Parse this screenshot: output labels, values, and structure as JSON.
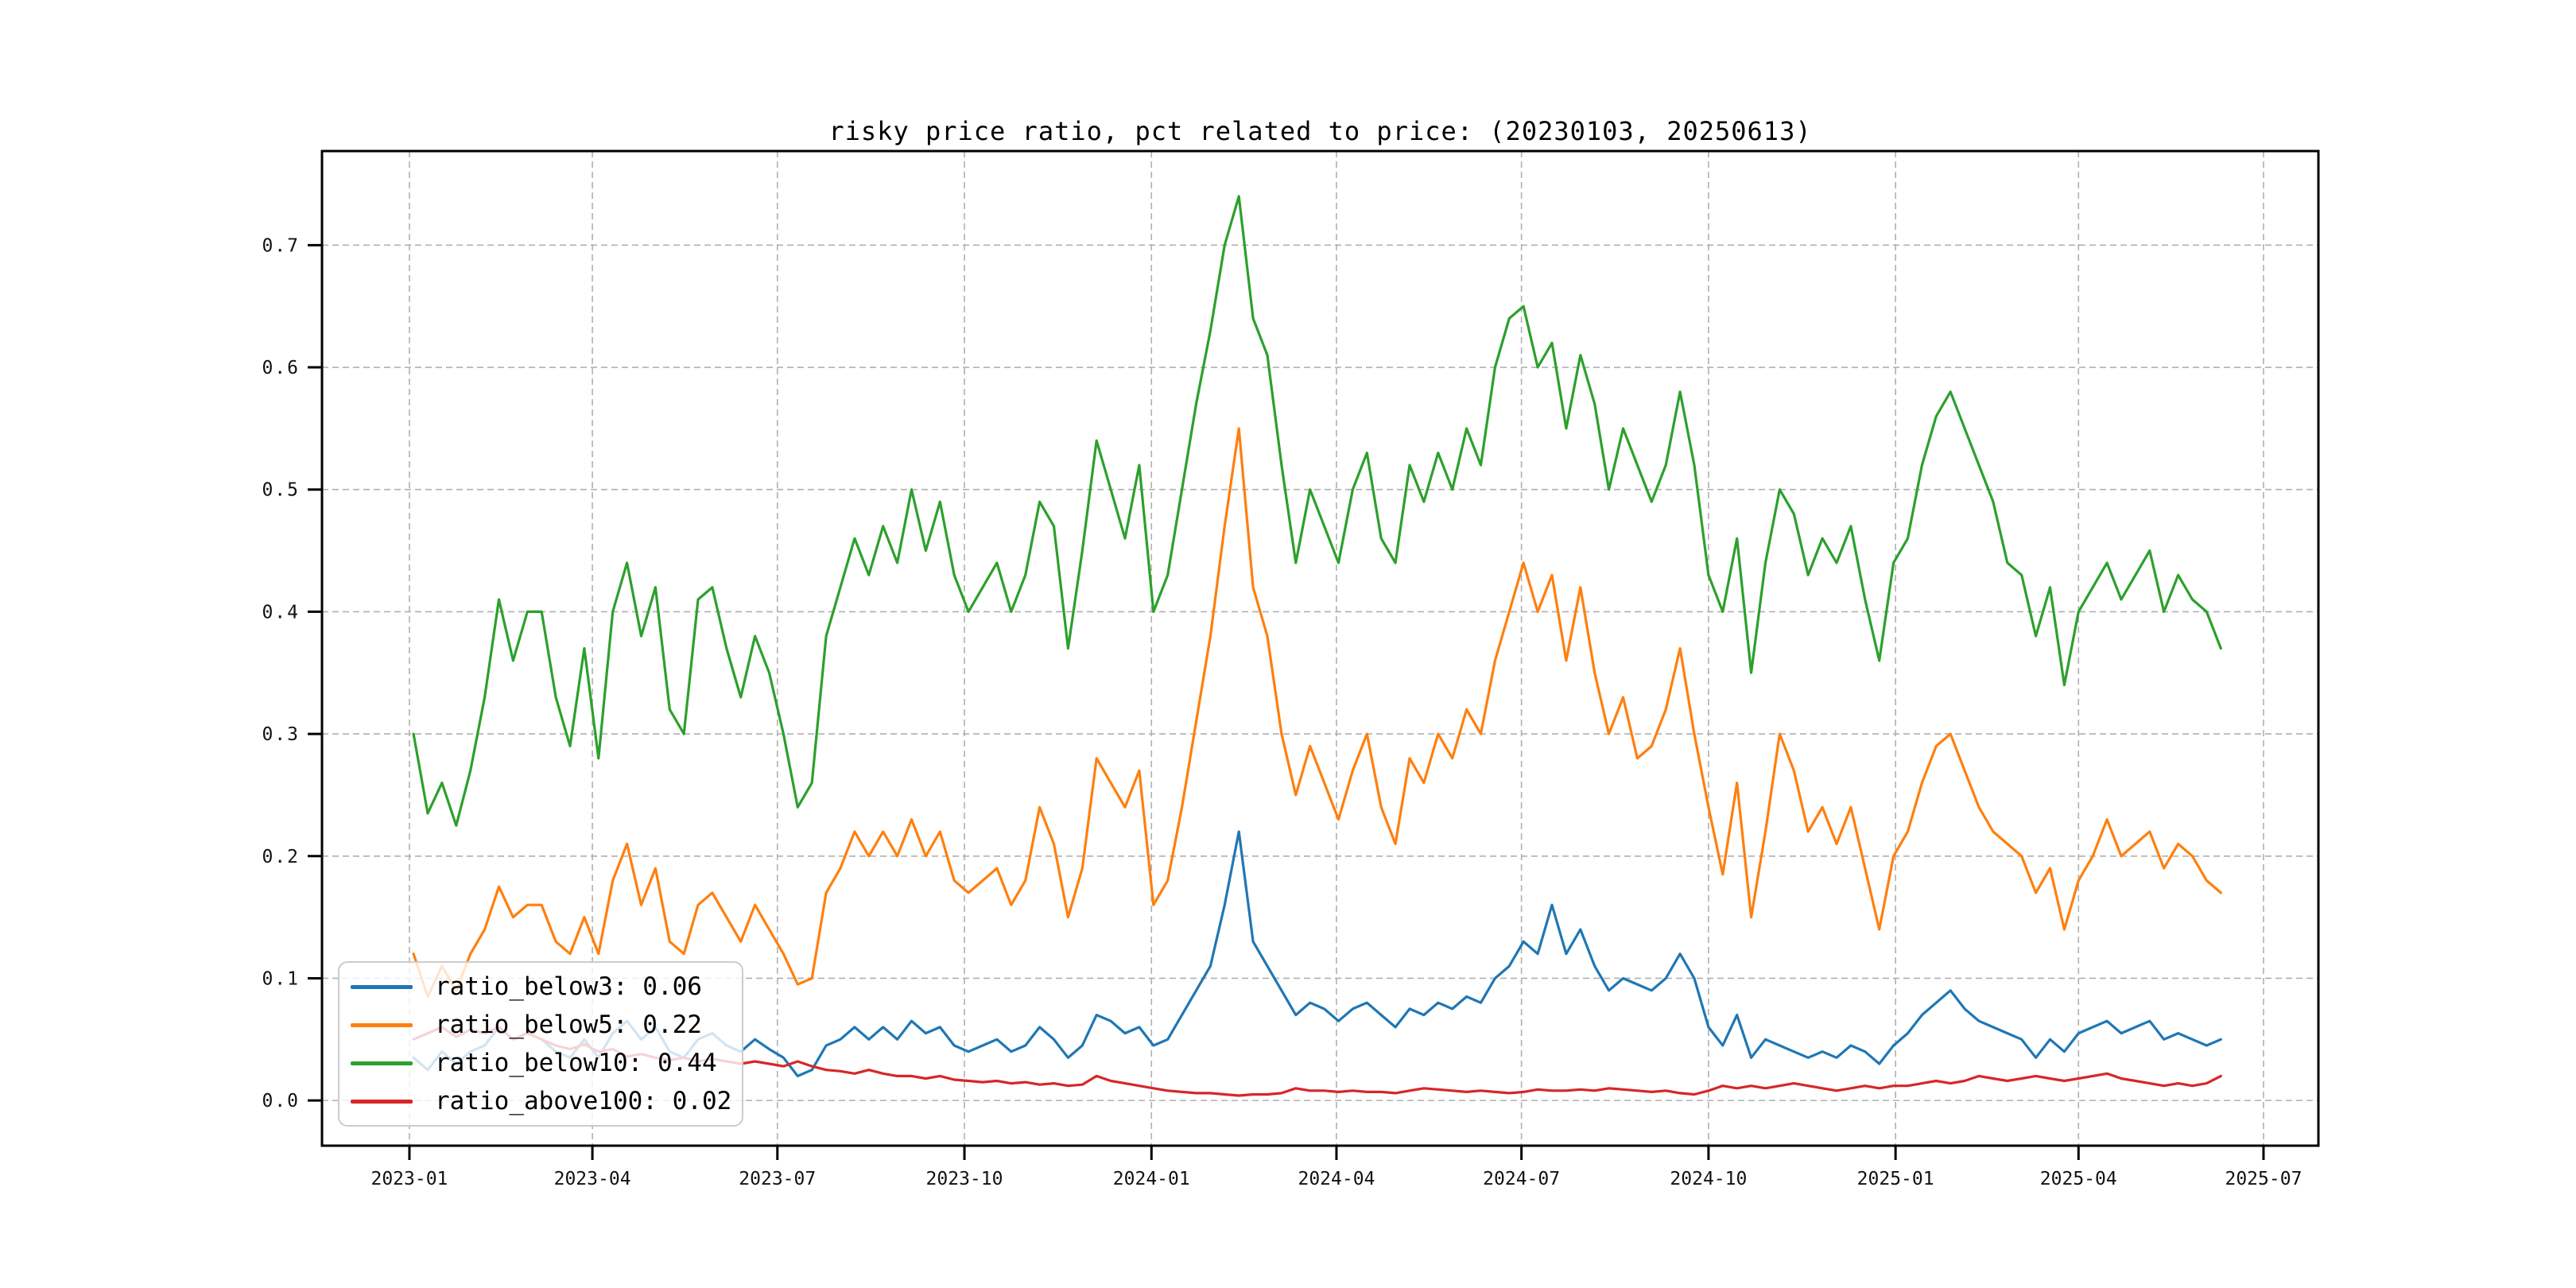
{
  "chart_data": {
    "type": "line",
    "title": "risky price ratio, pct related to price: (20230103, 20250613)",
    "xlabel": "",
    "ylabel": "",
    "grid": true,
    "legend_position": "lower left",
    "ylim": [
      -0.037,
      0.777
    ],
    "y_ticks": [
      0.0,
      0.1,
      0.2,
      0.3,
      0.4,
      0.5,
      0.6,
      0.7
    ],
    "y_tick_labels": [
      "0.0",
      "0.1",
      "0.2",
      "0.3",
      "0.4",
      "0.5",
      "0.6",
      "0.7"
    ],
    "xlim_dates": [
      "2022-11-19",
      "2025-07-28"
    ],
    "x_ticks": [
      {
        "label": "2023-01",
        "date": "2023-01-01"
      },
      {
        "label": "2023-04",
        "date": "2023-04-01"
      },
      {
        "label": "2023-07",
        "date": "2023-07-01"
      },
      {
        "label": "2023-10",
        "date": "2023-10-01"
      },
      {
        "label": "2024-01",
        "date": "2024-01-01"
      },
      {
        "label": "2024-04",
        "date": "2024-04-01"
      },
      {
        "label": "2024-07",
        "date": "2024-07-01"
      },
      {
        "label": "2024-10",
        "date": "2024-10-01"
      },
      {
        "label": "2025-01",
        "date": "2025-01-01"
      },
      {
        "label": "2025-04",
        "date": "2025-04-01"
      },
      {
        "label": "2025-07",
        "date": "2025-07-01"
      }
    ],
    "x_start_date": "2023-01-03",
    "x_interval_days": 7,
    "colors": {
      "grid": "#b0b0b0",
      "spine": "#000000",
      "tick_text": "#111111",
      "legend_border": "#cccccc"
    },
    "series": [
      {
        "name": "ratio_below3",
        "legend_label": "ratio_below3: 0.06",
        "color": "#1f77b4",
        "values": [
          0.035,
          0.025,
          0.04,
          0.03,
          0.04,
          0.045,
          0.06,
          0.05,
          0.055,
          0.05,
          0.04,
          0.035,
          0.05,
          0.035,
          0.055,
          0.065,
          0.05,
          0.06,
          0.04,
          0.035,
          0.05,
          0.055,
          0.045,
          0.04,
          0.05,
          0.042,
          0.035,
          0.02,
          0.025,
          0.045,
          0.05,
          0.06,
          0.05,
          0.06,
          0.05,
          0.065,
          0.055,
          0.06,
          0.045,
          0.04,
          0.045,
          0.05,
          0.04,
          0.045,
          0.06,
          0.05,
          0.035,
          0.045,
          0.07,
          0.065,
          0.055,
          0.06,
          0.045,
          0.05,
          0.07,
          0.09,
          0.11,
          0.16,
          0.22,
          0.13,
          0.11,
          0.09,
          0.07,
          0.08,
          0.075,
          0.065,
          0.075,
          0.08,
          0.07,
          0.06,
          0.075,
          0.07,
          0.08,
          0.075,
          0.085,
          0.08,
          0.1,
          0.11,
          0.13,
          0.12,
          0.16,
          0.12,
          0.14,
          0.11,
          0.09,
          0.1,
          0.095,
          0.09,
          0.1,
          0.12,
          0.1,
          0.06,
          0.045,
          0.07,
          0.035,
          0.05,
          0.045,
          0.04,
          0.035,
          0.04,
          0.035,
          0.045,
          0.04,
          0.03,
          0.045,
          0.055,
          0.07,
          0.08,
          0.09,
          0.075,
          0.065,
          0.06,
          0.055,
          0.05,
          0.035,
          0.05,
          0.04,
          0.055,
          0.06,
          0.065,
          0.055,
          0.06,
          0.065,
          0.05,
          0.055,
          0.05,
          0.045,
          0.05
        ]
      },
      {
        "name": "ratio_below5",
        "legend_label": "ratio_below5: 0.22",
        "color": "#ff7f0e",
        "values": [
          0.12,
          0.085,
          0.11,
          0.09,
          0.12,
          0.14,
          0.175,
          0.15,
          0.16,
          0.16,
          0.13,
          0.12,
          0.15,
          0.12,
          0.18,
          0.21,
          0.16,
          0.19,
          0.13,
          0.12,
          0.16,
          0.17,
          0.15,
          0.13,
          0.16,
          0.14,
          0.12,
          0.095,
          0.1,
          0.17,
          0.19,
          0.22,
          0.2,
          0.22,
          0.2,
          0.23,
          0.2,
          0.22,
          0.18,
          0.17,
          0.18,
          0.19,
          0.16,
          0.18,
          0.24,
          0.21,
          0.15,
          0.19,
          0.28,
          0.26,
          0.24,
          0.27,
          0.16,
          0.18,
          0.24,
          0.31,
          0.38,
          0.47,
          0.55,
          0.42,
          0.38,
          0.3,
          0.25,
          0.29,
          0.26,
          0.23,
          0.27,
          0.3,
          0.24,
          0.21,
          0.28,
          0.26,
          0.3,
          0.28,
          0.32,
          0.3,
          0.36,
          0.4,
          0.44,
          0.4,
          0.43,
          0.36,
          0.42,
          0.35,
          0.3,
          0.33,
          0.28,
          0.29,
          0.32,
          0.37,
          0.3,
          0.24,
          0.185,
          0.26,
          0.15,
          0.22,
          0.3,
          0.27,
          0.22,
          0.24,
          0.21,
          0.24,
          0.19,
          0.14,
          0.2,
          0.22,
          0.26,
          0.29,
          0.3,
          0.27,
          0.24,
          0.22,
          0.21,
          0.2,
          0.17,
          0.19,
          0.14,
          0.18,
          0.2,
          0.23,
          0.2,
          0.21,
          0.22,
          0.19,
          0.21,
          0.2,
          0.18,
          0.17
        ]
      },
      {
        "name": "ratio_below10",
        "legend_label": "ratio_below10: 0.44",
        "color": "#2ca02c",
        "values": [
          0.3,
          0.235,
          0.26,
          0.225,
          0.27,
          0.33,
          0.41,
          0.36,
          0.4,
          0.4,
          0.33,
          0.29,
          0.37,
          0.28,
          0.4,
          0.44,
          0.38,
          0.42,
          0.32,
          0.3,
          0.41,
          0.42,
          0.37,
          0.33,
          0.38,
          0.35,
          0.3,
          0.24,
          0.26,
          0.38,
          0.42,
          0.46,
          0.43,
          0.47,
          0.44,
          0.5,
          0.45,
          0.49,
          0.43,
          0.4,
          0.42,
          0.44,
          0.4,
          0.43,
          0.49,
          0.47,
          0.37,
          0.45,
          0.54,
          0.5,
          0.46,
          0.52,
          0.4,
          0.43,
          0.5,
          0.57,
          0.63,
          0.7,
          0.74,
          0.64,
          0.61,
          0.52,
          0.44,
          0.5,
          0.47,
          0.44,
          0.5,
          0.53,
          0.46,
          0.44,
          0.52,
          0.49,
          0.53,
          0.5,
          0.55,
          0.52,
          0.6,
          0.64,
          0.65,
          0.6,
          0.62,
          0.55,
          0.61,
          0.57,
          0.5,
          0.55,
          0.52,
          0.49,
          0.52,
          0.58,
          0.52,
          0.43,
          0.4,
          0.46,
          0.35,
          0.44,
          0.5,
          0.48,
          0.43,
          0.46,
          0.44,
          0.47,
          0.41,
          0.36,
          0.44,
          0.46,
          0.52,
          0.56,
          0.58,
          0.55,
          0.52,
          0.49,
          0.44,
          0.43,
          0.38,
          0.42,
          0.34,
          0.4,
          0.42,
          0.44,
          0.41,
          0.43,
          0.45,
          0.4,
          0.43,
          0.41,
          0.4,
          0.37
        ]
      },
      {
        "name": "ratio_above100",
        "legend_label": "ratio_above100: 0.02",
        "color": "#d62728",
        "values": [
          0.05,
          0.055,
          0.06,
          0.052,
          0.058,
          0.055,
          0.06,
          0.05,
          0.055,
          0.05,
          0.045,
          0.042,
          0.046,
          0.04,
          0.042,
          0.036,
          0.038,
          0.035,
          0.033,
          0.035,
          0.032,
          0.034,
          0.032,
          0.03,
          0.032,
          0.03,
          0.028,
          0.032,
          0.028,
          0.025,
          0.024,
          0.022,
          0.025,
          0.022,
          0.02,
          0.02,
          0.018,
          0.02,
          0.017,
          0.016,
          0.015,
          0.016,
          0.014,
          0.015,
          0.013,
          0.014,
          0.012,
          0.013,
          0.02,
          0.016,
          0.014,
          0.012,
          0.01,
          0.008,
          0.007,
          0.006,
          0.006,
          0.005,
          0.004,
          0.005,
          0.005,
          0.006,
          0.01,
          0.008,
          0.008,
          0.007,
          0.008,
          0.007,
          0.007,
          0.006,
          0.008,
          0.01,
          0.009,
          0.008,
          0.007,
          0.008,
          0.007,
          0.006,
          0.007,
          0.009,
          0.008,
          0.008,
          0.009,
          0.008,
          0.01,
          0.009,
          0.008,
          0.007,
          0.008,
          0.006,
          0.005,
          0.008,
          0.012,
          0.01,
          0.012,
          0.01,
          0.012,
          0.014,
          0.012,
          0.01,
          0.008,
          0.01,
          0.012,
          0.01,
          0.012,
          0.012,
          0.014,
          0.016,
          0.014,
          0.016,
          0.02,
          0.018,
          0.016,
          0.018,
          0.02,
          0.018,
          0.016,
          0.018,
          0.02,
          0.022,
          0.018,
          0.016,
          0.014,
          0.012,
          0.014,
          0.012,
          0.014,
          0.02
        ]
      }
    ]
  }
}
